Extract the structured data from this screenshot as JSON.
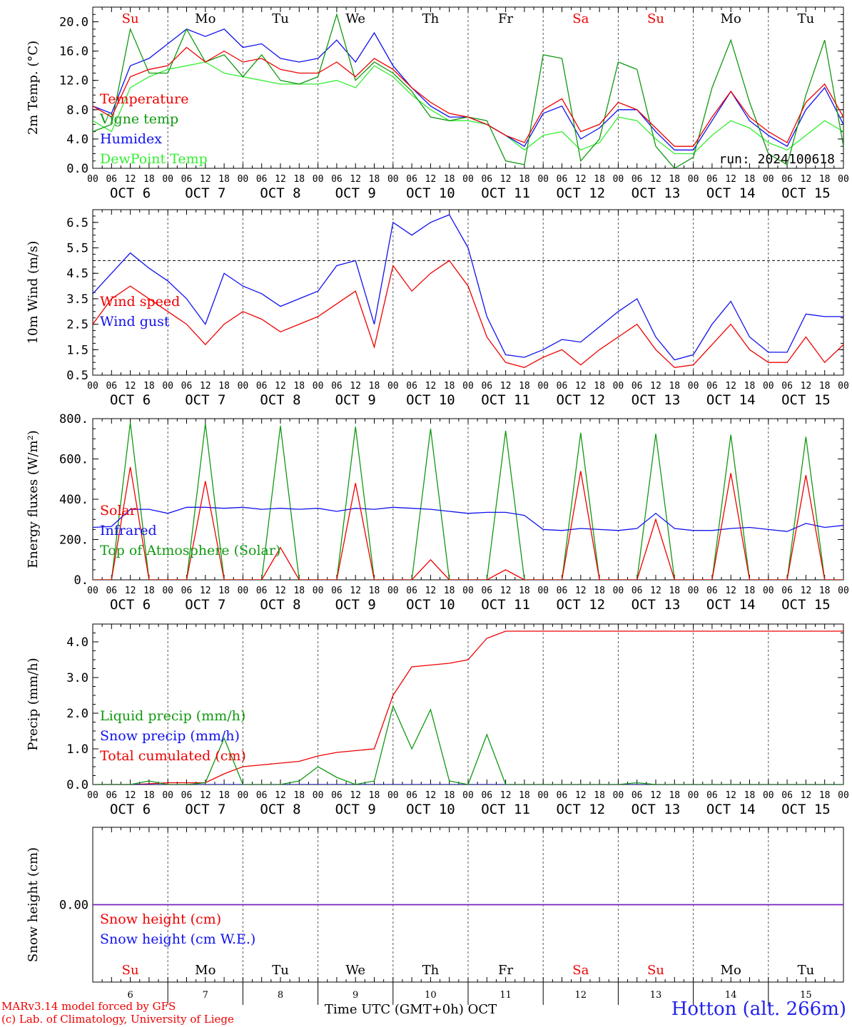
{
  "footer": {
    "model_line": "MARv3.14 model forced by GFS",
    "lab_line": "(c) Lab. of Climatology, University of Liege",
    "time_label": "Time UTC (GMT+0h)",
    "month_label": "OCT",
    "station": "Hotton (alt. 266m)"
  },
  "days": {
    "weekday_labels": [
      "Su",
      "Mo",
      "Tu",
      "We",
      "Th",
      "Fr",
      "Sa",
      "Su",
      "Mo",
      "Tu"
    ],
    "weekend_flags": [
      true,
      false,
      false,
      false,
      false,
      false,
      true,
      true,
      false,
      false
    ],
    "date_labels": [
      "OCT  6",
      "OCT  7",
      "OCT  8",
      "OCT  9",
      "OCT 10",
      "OCT 11",
      "OCT 12",
      "OCT 13",
      "OCT 14",
      "OCT 15"
    ],
    "day_numbers": [
      "6",
      "7",
      "8",
      "9",
      "10",
      "11",
      "12",
      "13",
      "14",
      "15"
    ],
    "hour_ticks": [
      "00",
      "06",
      "12",
      "18"
    ],
    "final_tick": "00"
  },
  "colors": {
    "red": "#ee0000",
    "green": "#119911",
    "blue": "#1111ee",
    "light_green": "#33ee33",
    "purple": "#7722bb",
    "weekend": "#ee0000",
    "weekday": "#000000"
  },
  "chart_data": [
    {
      "id": "temperature",
      "type": "line",
      "ylabel": "2m Temp. (°C)",
      "ylim": [
        0,
        22
      ],
      "yticks": [
        "0.0",
        "4.0",
        "8.0",
        "12.0",
        "16.0",
        "20.0"
      ],
      "ytick_values": [
        0,
        4,
        8,
        12,
        16,
        20
      ],
      "annotation": "run: 2024100618",
      "x_unit": "hours since OCT 6 00 UTC",
      "x": [
        0,
        6,
        12,
        18,
        24,
        30,
        36,
        42,
        48,
        54,
        60,
        66,
        72,
        78,
        84,
        90,
        96,
        102,
        108,
        114,
        120,
        126,
        132,
        138,
        144,
        150,
        156,
        162,
        168,
        174,
        180,
        186,
        192,
        198,
        204,
        210,
        216,
        222,
        228,
        234,
        240
      ],
      "series": [
        {
          "name": "Temperature",
          "color": "#ee0000",
          "values": [
            8.5,
            7.0,
            12.5,
            13.5,
            14.0,
            16.5,
            14.5,
            16.0,
            14.5,
            15.0,
            13.5,
            13.0,
            13.0,
            14.5,
            12.5,
            15.0,
            13.5,
            11.0,
            9.0,
            7.5,
            7.0,
            6.0,
            4.5,
            3.5,
            8.0,
            9.5,
            5.0,
            6.0,
            9.0,
            8.0,
            5.5,
            3.0,
            3.0,
            7.0,
            10.5,
            7.0,
            5.0,
            3.5,
            9.0,
            11.5,
            7.0
          ]
        },
        {
          "name": "Vigne temp",
          "color": "#119911",
          "values": [
            5.0,
            6.0,
            19.0,
            13.0,
            13.0,
            19.0,
            14.5,
            15.5,
            12.5,
            15.5,
            12.0,
            11.5,
            12.5,
            21.0,
            12.0,
            14.5,
            13.0,
            10.5,
            7.0,
            6.5,
            7.0,
            6.5,
            1.0,
            0.5,
            15.5,
            15.0,
            1.0,
            4.0,
            14.5,
            13.5,
            3.0,
            0.0,
            1.5,
            11.0,
            17.5,
            9.0,
            2.0,
            0.5,
            10.0,
            17.5,
            3.0
          ]
        },
        {
          "name": "Humidex",
          "color": "#1111ee",
          "values": [
            8.5,
            7.5,
            14.0,
            15.0,
            17.0,
            19.0,
            18.0,
            19.0,
            16.5,
            17.0,
            15.0,
            14.5,
            15.0,
            17.5,
            14.5,
            18.5,
            14.0,
            11.0,
            8.5,
            7.0,
            7.0,
            6.0,
            4.5,
            3.0,
            7.5,
            8.5,
            4.0,
            5.5,
            8.0,
            8.0,
            5.0,
            2.5,
            2.5,
            6.5,
            10.5,
            6.5,
            4.5,
            3.0,
            8.0,
            11.0,
            6.0
          ]
        },
        {
          "name": "DewPoint Temp",
          "color": "#33ee33",
          "values": [
            6.5,
            5.0,
            11.0,
            12.5,
            13.5,
            14.0,
            14.5,
            13.0,
            12.5,
            12.0,
            11.5,
            11.5,
            11.5,
            12.0,
            11.0,
            14.0,
            12.5,
            10.0,
            8.0,
            6.5,
            6.5,
            6.0,
            4.5,
            2.5,
            4.5,
            5.0,
            2.5,
            3.5,
            7.0,
            6.5,
            4.0,
            2.0,
            2.0,
            4.5,
            6.5,
            5.5,
            3.5,
            2.5,
            4.5,
            6.5,
            5.0
          ]
        }
      ]
    },
    {
      "id": "wind",
      "type": "line",
      "ylabel": "10m Wind (m/s)",
      "ylim": [
        0.5,
        7.0
      ],
      "yticks": [
        "0.5",
        "1.5",
        "2.5",
        "3.5",
        "4.5",
        "5.5",
        "6.5"
      ],
      "ytick_values": [
        0.5,
        1.5,
        2.5,
        3.5,
        4.5,
        5.5,
        6.5
      ],
      "reference_line": 5.0,
      "x_unit": "hours since OCT 6 00 UTC",
      "x": [
        0,
        6,
        12,
        18,
        24,
        30,
        36,
        42,
        48,
        54,
        60,
        66,
        72,
        78,
        84,
        90,
        96,
        102,
        108,
        114,
        120,
        126,
        132,
        138,
        144,
        150,
        156,
        162,
        168,
        174,
        180,
        186,
        192,
        198,
        204,
        210,
        216,
        222,
        228,
        234,
        240
      ],
      "series": [
        {
          "name": "Wind speed",
          "color": "#ee0000",
          "values": [
            2.5,
            3.5,
            4.0,
            3.5,
            3.0,
            2.5,
            1.7,
            2.5,
            3.0,
            2.7,
            2.2,
            2.5,
            2.8,
            3.3,
            3.8,
            1.6,
            4.8,
            3.8,
            4.5,
            5.0,
            4.0,
            2.0,
            1.0,
            0.8,
            1.2,
            1.5,
            0.9,
            1.5,
            2.0,
            2.5,
            1.5,
            0.8,
            0.9,
            1.7,
            2.5,
            1.5,
            1.0,
            1.0,
            2.0,
            1.0,
            1.7
          ]
        },
        {
          "name": "Wind gust",
          "color": "#1111ee",
          "values": [
            3.7,
            4.5,
            5.3,
            4.7,
            4.2,
            3.5,
            2.5,
            4.5,
            4.0,
            3.7,
            3.2,
            3.5,
            3.8,
            4.8,
            5.0,
            2.5,
            6.5,
            6.0,
            6.5,
            6.8,
            5.5,
            2.8,
            1.3,
            1.2,
            1.5,
            1.9,
            1.8,
            2.4,
            3.0,
            3.5,
            2.0,
            1.1,
            1.3,
            2.5,
            3.4,
            2.0,
            1.4,
            1.4,
            2.9,
            2.8,
            2.8
          ]
        }
      ]
    },
    {
      "id": "energy",
      "type": "line",
      "ylabel": "Energy fluxes (W/m²)",
      "ylim": [
        0,
        800
      ],
      "yticks": [
        "0.",
        "200.",
        "400.",
        "600.",
        "800."
      ],
      "ytick_values": [
        0,
        200,
        400,
        600,
        800
      ],
      "x_unit": "hours since OCT 6 00 UTC",
      "x": [
        0,
        6,
        12,
        18,
        24,
        30,
        36,
        42,
        48,
        54,
        60,
        66,
        72,
        78,
        84,
        90,
        96,
        102,
        108,
        114,
        120,
        126,
        132,
        138,
        144,
        150,
        156,
        162,
        168,
        174,
        180,
        186,
        192,
        198,
        204,
        210,
        216,
        222,
        228,
        234,
        240
      ],
      "series": [
        {
          "name": "Solar",
          "color": "#ee0000",
          "values": [
            0,
            0,
            560,
            0,
            0,
            0,
            490,
            0,
            0,
            0,
            160,
            0,
            0,
            0,
            480,
            0,
            0,
            0,
            100,
            0,
            0,
            0,
            50,
            0,
            0,
            0,
            540,
            0,
            0,
            0,
            300,
            0,
            0,
            0,
            530,
            0,
            0,
            0,
            520,
            0,
            0
          ]
        },
        {
          "name": "Infrared",
          "color": "#1111ee",
          "values": [
            260,
            265,
            350,
            350,
            330,
            360,
            360,
            355,
            360,
            350,
            355,
            350,
            355,
            340,
            355,
            350,
            360,
            355,
            350,
            340,
            330,
            335,
            335,
            320,
            250,
            245,
            255,
            250,
            245,
            255,
            330,
            255,
            245,
            245,
            255,
            260,
            250,
            240,
            280,
            260,
            270
          ]
        },
        {
          "name": "Top of Atmosphere (Solar)",
          "color": "#119911",
          "values": [
            0,
            0,
            780,
            0,
            0,
            0,
            775,
            0,
            0,
            0,
            765,
            0,
            0,
            0,
            760,
            0,
            0,
            0,
            750,
            0,
            0,
            0,
            740,
            0,
            0,
            0,
            730,
            0,
            0,
            0,
            725,
            0,
            0,
            0,
            720,
            0,
            0,
            0,
            710,
            0,
            0
          ]
        }
      ]
    },
    {
      "id": "precip",
      "type": "line",
      "ylabel": "Precip (mm/h)",
      "ylim": [
        0,
        4.5
      ],
      "yticks": [
        "0.0",
        "1.0",
        "2.0",
        "3.0",
        "4.0"
      ],
      "ytick_values": [
        0,
        1,
        2,
        3,
        4
      ],
      "x_unit": "hours since OCT 6 00 UTC",
      "x": [
        0,
        6,
        12,
        18,
        24,
        30,
        36,
        42,
        48,
        54,
        60,
        66,
        72,
        78,
        84,
        90,
        96,
        102,
        108,
        114,
        120,
        126,
        132,
        138,
        144,
        150,
        156,
        162,
        168,
        174,
        180,
        186,
        192,
        198,
        204,
        210,
        216,
        222,
        228,
        234,
        240
      ],
      "series": [
        {
          "name": "Liquid precip (mm/h)",
          "color": "#119911",
          "values": [
            0,
            0,
            0,
            0.1,
            0,
            0,
            0.05,
            1.3,
            0,
            0,
            0,
            0.1,
            0.5,
            0.2,
            0,
            0.1,
            2.2,
            1.0,
            2.1,
            0.1,
            0,
            1.4,
            0,
            0,
            0,
            0,
            0,
            0,
            0,
            0.05,
            0,
            0,
            0,
            0,
            0,
            0,
            0,
            0,
            0,
            0,
            0
          ]
        },
        {
          "name": "Snow precip (mm/h)",
          "color": "#1111ee",
          "values": [
            0,
            0,
            0,
            0,
            0,
            0,
            0,
            0,
            0,
            0,
            0,
            0,
            0,
            0,
            0,
            0,
            0,
            0,
            0,
            0,
            0,
            0,
            0,
            0,
            0,
            0,
            0,
            0,
            0,
            0,
            0,
            0,
            0,
            0,
            0,
            0,
            0,
            0,
            0,
            0,
            0
          ]
        },
        {
          "name": "Total cumulated (cm)",
          "color": "#ee0000",
          "values": [
            0,
            0,
            0,
            0.02,
            0.05,
            0.05,
            0.05,
            0.3,
            0.5,
            0.55,
            0.6,
            0.65,
            0.8,
            0.9,
            0.95,
            1.0,
            2.5,
            3.3,
            3.35,
            3.4,
            3.5,
            4.1,
            4.3,
            4.3,
            4.3,
            4.3,
            4.3,
            4.3,
            4.3,
            4.3,
            4.3,
            4.3,
            4.3,
            4.3,
            4.3,
            4.3,
            4.3,
            4.3,
            4.3,
            4.3,
            4.3
          ]
        }
      ]
    },
    {
      "id": "snow",
      "type": "line",
      "ylabel": "Snow height (cm)",
      "ylim": [
        -1,
        1
      ],
      "yticks": [
        "0.00"
      ],
      "ytick_values": [
        0
      ],
      "x_unit": "hours since OCT 6 00 UTC",
      "x": [
        0,
        240
      ],
      "series": [
        {
          "name": "Snow height (cm)",
          "color": "#ee0000",
          "values": [
            0,
            0
          ]
        },
        {
          "name": "Snow height (cm W.E.)",
          "color": "#1111ee",
          "values": [
            0,
            0
          ]
        }
      ]
    }
  ]
}
